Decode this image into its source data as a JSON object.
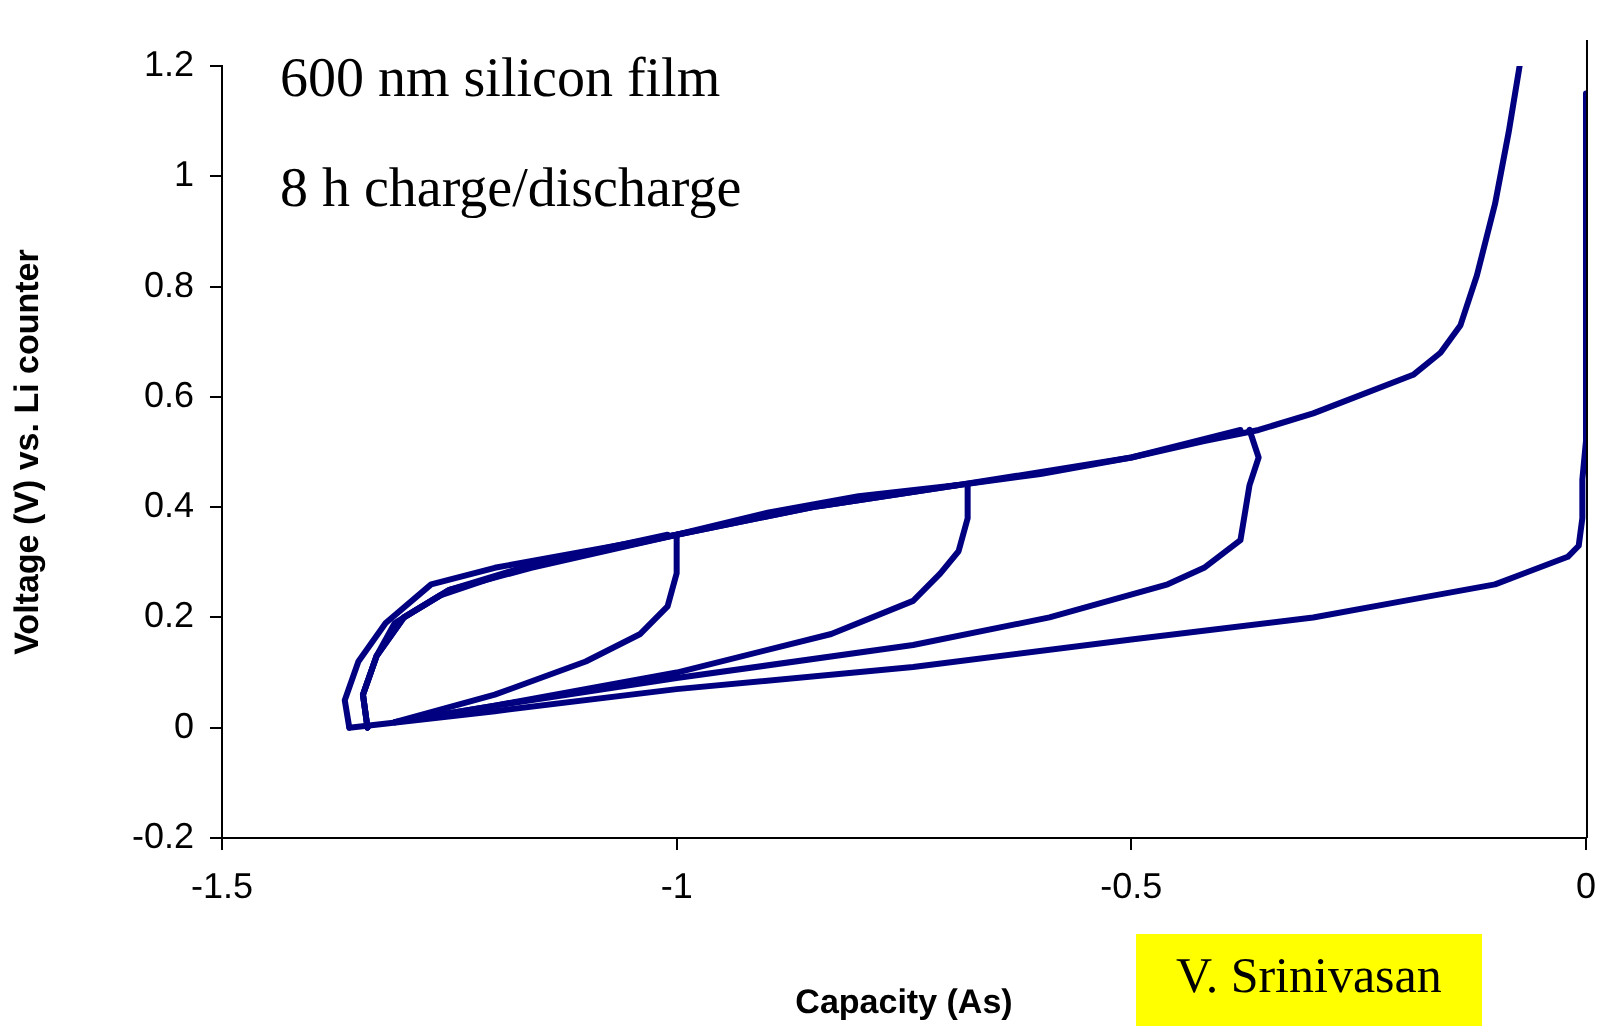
{
  "chart_data": {
    "type": "line",
    "xlabel": "Capacity (As)",
    "ylabel": "Voltage (V) vs. Li counter",
    "annotations": [
      "600 nm silicon film",
      "8 h charge/discharge",
      "V. Srinivasan"
    ],
    "xlim": [
      -1.5,
      0
    ],
    "xticks": [
      -1.5,
      -1,
      -0.5,
      0
    ],
    "ylim": [
      -0.2,
      1.2
    ],
    "yticks": [
      -0.2,
      0,
      0.2,
      0.4,
      0.6,
      0.8,
      1,
      1.2
    ],
    "grid": false,
    "legend": false,
    "marker": "none",
    "line_style": "solid",
    "series": [
      {
        "color": "#000080",
        "x": [
          0,
          0,
          -0.004,
          -0.004,
          -0.008,
          -0.02,
          -0.1,
          -0.2,
          -0.3,
          -0.5,
          -0.74,
          -1.0,
          -1.2,
          -1.36
        ],
        "values": [
          1.15,
          0.52,
          0.45,
          0.38,
          0.33,
          0.31,
          0.26,
          0.23,
          0.2,
          0.16,
          0.11,
          0.07,
          0.03,
          0.0
        ]
      },
      {
        "color": "#000080",
        "x": [
          -1.36,
          -1.365,
          -1.35,
          -1.32,
          -1.27,
          -1.2,
          -1.1,
          -1.0,
          -0.9,
          -0.8,
          -0.69,
          -0.6,
          -0.5,
          -0.42,
          -0.36,
          -0.3,
          -0.19,
          -0.16,
          -0.138,
          -0.12,
          -0.1,
          -0.085,
          -0.073
        ],
        "values": [
          0.0,
          0.05,
          0.12,
          0.19,
          0.26,
          0.29,
          0.32,
          0.35,
          0.39,
          0.42,
          0.44,
          0.46,
          0.49,
          0.52,
          0.54,
          0.57,
          0.64,
          0.68,
          0.73,
          0.82,
          0.95,
          1.08,
          1.2
        ]
      },
      {
        "color": "#000080",
        "x": [
          -1.34,
          -1.345,
          -1.33,
          -1.3,
          -1.25,
          -1.15,
          -1.01
        ],
        "values": [
          0.0,
          0.06,
          0.13,
          0.2,
          0.25,
          0.3,
          0.35
        ]
      },
      {
        "color": "#000080",
        "x": [
          -1.0,
          -1.0,
          -1.01,
          -1.04,
          -1.1,
          -1.2,
          -1.31
        ],
        "values": [
          0.35,
          0.28,
          0.22,
          0.17,
          0.12,
          0.06,
          0.01
        ]
      },
      {
        "color": "#000080",
        "x": [
          -1.34,
          -1.345,
          -1.33,
          -1.31,
          -1.26,
          -1.17,
          -1.0,
          -0.85,
          -0.69
        ],
        "values": [
          0.0,
          0.06,
          0.13,
          0.19,
          0.24,
          0.29,
          0.35,
          0.4,
          0.44
        ]
      },
      {
        "color": "#000080",
        "x": [
          -0.68,
          -0.68,
          -0.69,
          -0.71,
          -0.74,
          -0.83,
          -1.0,
          -1.2,
          -1.31
        ],
        "values": [
          0.44,
          0.38,
          0.32,
          0.28,
          0.23,
          0.17,
          0.1,
          0.04,
          0.01
        ]
      },
      {
        "color": "#000080",
        "x": [
          -1.34,
          -1.345,
          -1.33,
          -1.3,
          -1.25,
          -1.16,
          -1.0,
          -0.85,
          -0.69,
          -0.5,
          -0.38
        ],
        "values": [
          0.0,
          0.06,
          0.13,
          0.2,
          0.25,
          0.29,
          0.35,
          0.4,
          0.44,
          0.49,
          0.54
        ]
      },
      {
        "color": "#000080",
        "x": [
          -0.37,
          -0.36,
          -0.37,
          -0.38,
          -0.42,
          -0.46,
          -0.59,
          -0.74,
          -1.0,
          -1.2,
          -1.31
        ],
        "values": [
          0.54,
          0.49,
          0.44,
          0.34,
          0.29,
          0.26,
          0.2,
          0.15,
          0.09,
          0.04,
          0.01
        ]
      }
    ]
  }
}
